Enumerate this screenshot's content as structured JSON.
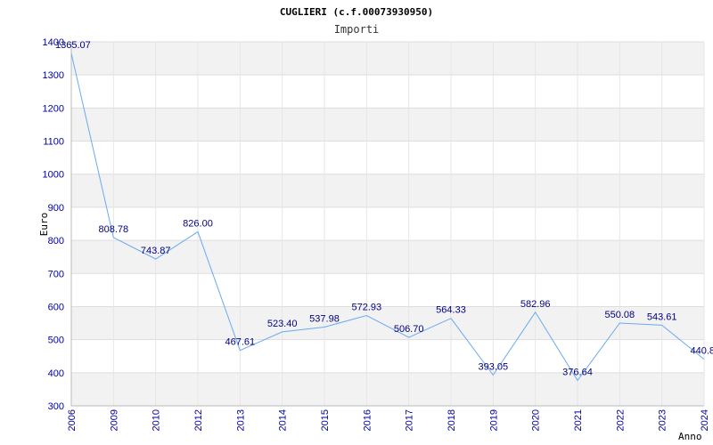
{
  "chart_data": {
    "type": "line",
    "title": "CUGLIERI (c.f.00073930950)",
    "subtitle": "Importi",
    "ylabel": "Euro",
    "xlabel": "Anno",
    "ylim": [
      300,
      1400
    ],
    "yticks": [
      "300",
      "400",
      "500",
      "600",
      "700",
      "800",
      "900",
      "1000",
      "1100",
      "1200",
      "1300",
      "1400"
    ],
    "categories": [
      "2006",
      "2009",
      "2010",
      "2012",
      "2013",
      "2014",
      "2015",
      "2016",
      "2017",
      "2018",
      "2019",
      "2020",
      "2021",
      "2022",
      "2023",
      "2024"
    ],
    "values": [
      1365.07,
      808.78,
      743.87,
      826.0,
      467.61,
      523.4,
      537.98,
      572.93,
      506.7,
      564.33,
      393.05,
      582.96,
      376.64,
      550.08,
      543.61,
      440.8
    ],
    "labels": [
      "1365.07",
      "808.78",
      "743.87",
      "826.00",
      "467.61",
      "523.40",
      "537.98",
      "572.93",
      "506.70",
      "564.33",
      "393.05",
      "582.96",
      "376.64",
      "550.08",
      "543.61",
      "440.8"
    ],
    "grid": true,
    "line_color": "#6aaaf0",
    "band_color": "#f2f2f2",
    "tick_color": "#0000a0",
    "label_color": "#000080"
  }
}
